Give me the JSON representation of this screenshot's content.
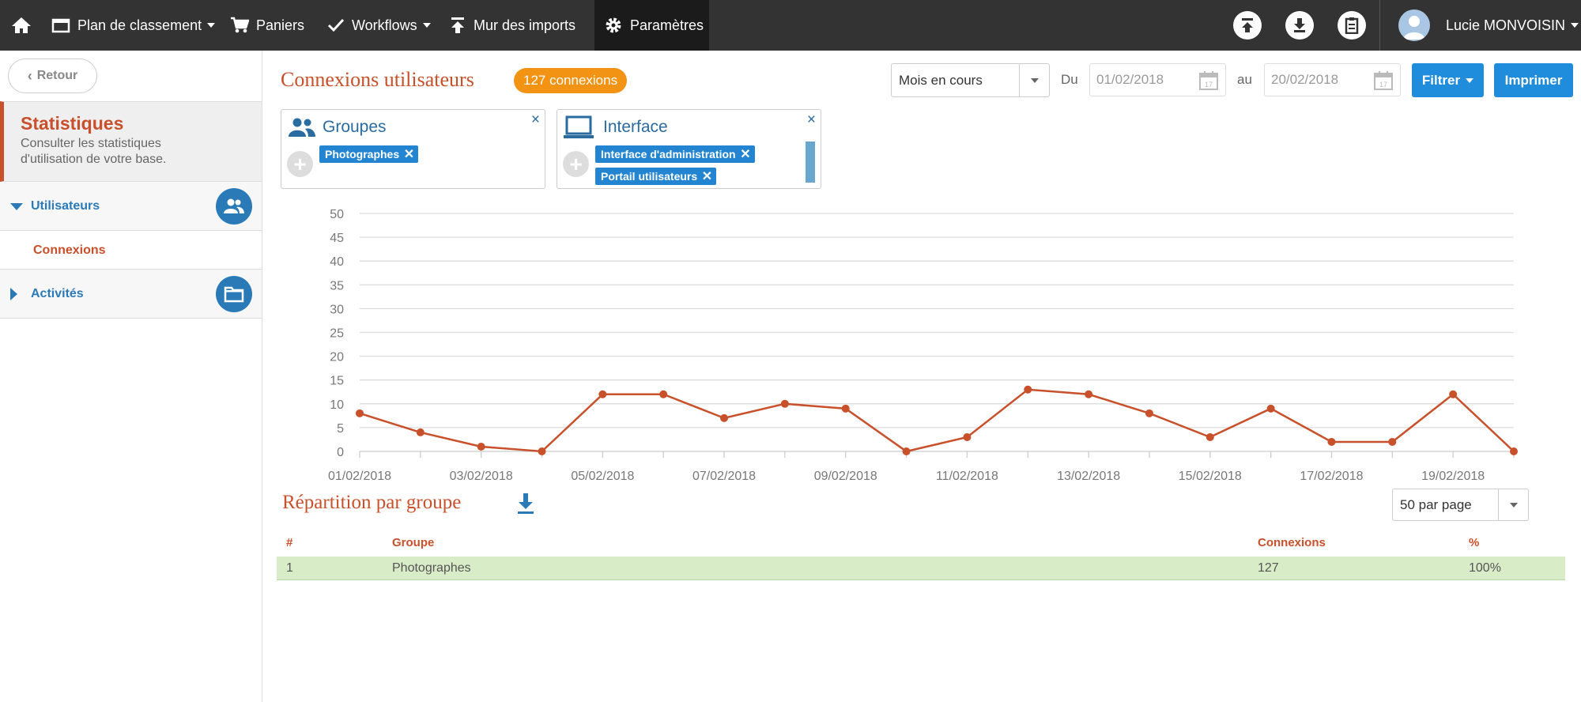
{
  "nav": {
    "items": [
      {
        "label": "Plan de classement",
        "icon": "folder-icon",
        "dropdown": true
      },
      {
        "label": "Paniers",
        "icon": "cart-icon",
        "dropdown": false
      },
      {
        "label": "Workflows",
        "icon": "checkmark-icon",
        "dropdown": true
      },
      {
        "label": "Mur des imports",
        "icon": "upload-arrow-icon",
        "dropdown": false
      },
      {
        "label": "Paramètres",
        "icon": "gear-icon",
        "dropdown": false,
        "active": true
      }
    ],
    "user": "Lucie MONVOISIN"
  },
  "sidebar": {
    "back_label": "Retour",
    "title": "Statistiques",
    "description": "Consulter les statistiques d'utilisation de votre base.",
    "sections": [
      {
        "label": "Utilisateurs",
        "expanded": true,
        "icon": "users-icon"
      },
      {
        "label": "Activités",
        "expanded": false,
        "icon": "folder-icon"
      }
    ],
    "active_item": "Connexions"
  },
  "header": {
    "title": "Connexions utilisateurs",
    "badge": "127 connexions",
    "period": "Mois en cours",
    "from_label": "Du",
    "from_date": "01/02/2018",
    "to_label": "au",
    "to_date": "20/02/2018",
    "filter_label": "Filtrer",
    "print_label": "Imprimer"
  },
  "filters": {
    "groups": {
      "title": "Groupes",
      "close": "×",
      "tags": [
        "Photographes"
      ]
    },
    "interface": {
      "title": "Interface",
      "close": "×",
      "tags": [
        "Interface d'administration",
        "Portail utilisateurs"
      ]
    }
  },
  "chart_data": {
    "type": "line",
    "x": [
      "01/02/2018",
      "02/02/2018",
      "03/02/2018",
      "04/02/2018",
      "05/02/2018",
      "06/02/2018",
      "07/02/2018",
      "08/02/2018",
      "09/02/2018",
      "10/02/2018",
      "11/02/2018",
      "12/02/2018",
      "13/02/2018",
      "14/02/2018",
      "15/02/2018",
      "16/02/2018",
      "17/02/2018",
      "18/02/2018",
      "19/02/2018",
      "20/02/2018"
    ],
    "values": [
      8,
      4,
      1,
      0,
      12,
      12,
      7,
      10,
      9,
      0,
      3,
      13,
      12,
      8,
      3,
      9,
      2,
      2,
      12,
      0
    ],
    "xticks": [
      "01/02/2018",
      "03/02/2018",
      "05/02/2018",
      "07/02/2018",
      "09/02/2018",
      "11/02/2018",
      "13/02/2018",
      "15/02/2018",
      "17/02/2018",
      "19/02/2018"
    ],
    "yticks": [
      "0",
      "5",
      "10",
      "15",
      "20",
      "25",
      "30",
      "35",
      "40",
      "45",
      "50"
    ],
    "ylim": [
      0,
      50
    ],
    "color": "#c8502a",
    "grid": true
  },
  "repartition": {
    "title": "Répartition par groupe",
    "per_page": "50 par page",
    "columns": [
      "#",
      "Groupe",
      "Connexions",
      "%"
    ],
    "rows": [
      {
        "index": "1",
        "group": "Photographes",
        "connexions": "127",
        "percent": "100%"
      }
    ]
  }
}
